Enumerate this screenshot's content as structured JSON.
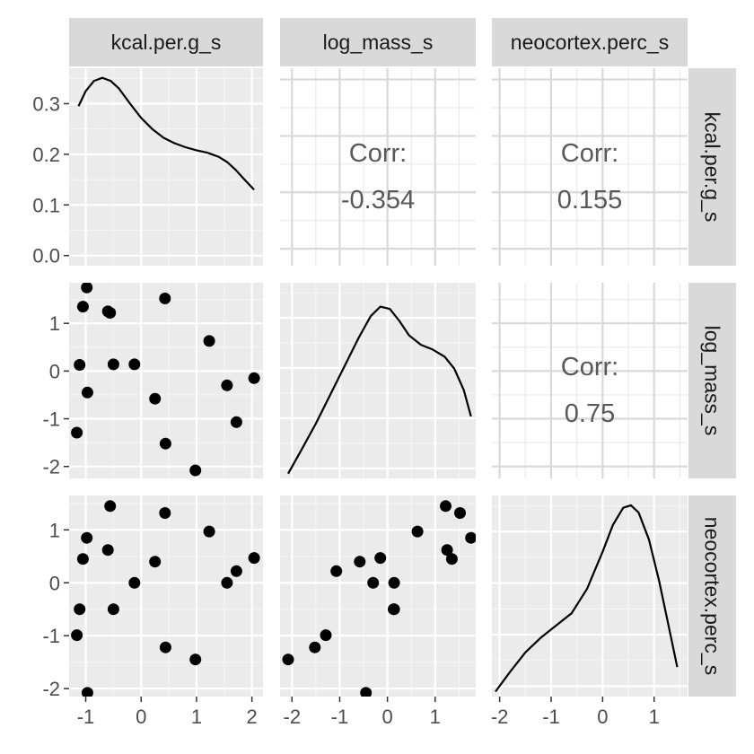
{
  "chart_data": {
    "type": "scatter-matrix",
    "variables": [
      "kcal.per.g_s",
      "log_mass_s",
      "neocortex.perc_s"
    ],
    "axes": {
      "kcal.per.g_s": {
        "range": [
          -1.3,
          2.2
        ],
        "ticks": [
          -1,
          0,
          1,
          2
        ],
        "tick_labels": [
          "-1",
          "0",
          "1",
          "2"
        ]
      },
      "log_mass_s": {
        "range": [
          -2.25,
          1.85
        ],
        "ticks": [
          -2,
          -1,
          0,
          1
        ],
        "tick_labels": [
          "-2",
          "-1",
          "0",
          "1"
        ]
      },
      "neocortex.perc_s": {
        "range": [
          -2.15,
          1.65
        ],
        "ticks": [
          -2,
          -1,
          0,
          1
        ],
        "tick_labels": [
          "-2",
          "-1",
          "0",
          "1"
        ]
      }
    },
    "density_axis": {
      "range": [
        -0.02,
        0.37
      ],
      "ticks": [
        0,
        0.1,
        0.2,
        0.3
      ],
      "tick_labels": [
        "0.0",
        "0.1",
        "0.2",
        "0.3"
      ]
    },
    "correlations": [
      {
        "row": "kcal.per.g_s",
        "col": "log_mass_s",
        "label": "Corr:",
        "value": "-0.354"
      },
      {
        "row": "kcal.per.g_s",
        "col": "neocortex.perc_s",
        "label": "Corr:",
        "value": "0.155"
      },
      {
        "row": "log_mass_s",
        "col": "neocortex.perc_s",
        "label": "Corr:",
        "value": "0.75"
      }
    ],
    "observations": [
      {
        "kcal.per.g_s": -1.16,
        "log_mass_s": -1.29,
        "neocortex.perc_s": -0.99
      },
      {
        "kcal.per.g_s": -1.11,
        "log_mass_s": 0.13,
        "neocortex.perc_s": -0.5
      },
      {
        "kcal.per.g_s": -1.05,
        "log_mass_s": 1.35,
        "neocortex.perc_s": 0.45
      },
      {
        "kcal.per.g_s": -0.98,
        "log_mass_s": 1.75,
        "neocortex.perc_s": 0.85
      },
      {
        "kcal.per.g_s": -0.97,
        "log_mass_s": -0.45,
        "neocortex.perc_s": -2.08
      },
      {
        "kcal.per.g_s": -0.6,
        "log_mass_s": 1.25,
        "neocortex.perc_s": 0.62
      },
      {
        "kcal.per.g_s": -0.56,
        "log_mass_s": 1.22,
        "neocortex.perc_s": 1.45
      },
      {
        "kcal.per.g_s": -0.5,
        "log_mass_s": 0.14,
        "neocortex.perc_s": -0.5
      },
      {
        "kcal.per.g_s": -0.12,
        "log_mass_s": 0.14,
        "neocortex.perc_s": 0.0
      },
      {
        "kcal.per.g_s": 0.25,
        "log_mass_s": -0.58,
        "neocortex.perc_s": 0.4
      },
      {
        "kcal.per.g_s": 0.43,
        "log_mass_s": 1.52,
        "neocortex.perc_s": 1.32
      },
      {
        "kcal.per.g_s": 0.44,
        "log_mass_s": -1.52,
        "neocortex.perc_s": -1.22
      },
      {
        "kcal.per.g_s": 0.98,
        "log_mass_s": -2.08,
        "neocortex.perc_s": -1.45
      },
      {
        "kcal.per.g_s": 1.23,
        "log_mass_s": 0.63,
        "neocortex.perc_s": 0.97
      },
      {
        "kcal.per.g_s": 1.55,
        "log_mass_s": -0.3,
        "neocortex.perc_s": 0.0
      },
      {
        "kcal.per.g_s": 1.72,
        "log_mass_s": -1.07,
        "neocortex.perc_s": 0.22
      },
      {
        "kcal.per.g_s": 2.04,
        "log_mass_s": -0.15,
        "neocortex.perc_s": 0.47
      }
    ],
    "density_curves": {
      "kcal.per.g_s": {
        "x": [
          -1.13,
          -1.0,
          -0.85,
          -0.7,
          -0.55,
          -0.4,
          -0.2,
          0.0,
          0.2,
          0.4,
          0.6,
          0.8,
          1.0,
          1.2,
          1.4,
          1.55,
          1.7,
          1.85,
          2.04
        ],
        "y": [
          0.295,
          0.325,
          0.345,
          0.351,
          0.345,
          0.33,
          0.3,
          0.272,
          0.25,
          0.233,
          0.222,
          0.214,
          0.208,
          0.203,
          0.195,
          0.185,
          0.17,
          0.152,
          0.13
        ]
      },
      "log_mass_s": {
        "x": [
          -2.08,
          -1.8,
          -1.5,
          -1.2,
          -0.9,
          -0.6,
          -0.35,
          -0.15,
          0.05,
          0.25,
          0.45,
          0.7,
          0.95,
          1.2,
          1.4,
          1.6,
          1.75
        ],
        "y": [
          0.0,
          0.1,
          0.21,
          0.33,
          0.45,
          0.57,
          0.66,
          0.7,
          0.69,
          0.64,
          0.58,
          0.54,
          0.52,
          0.49,
          0.44,
          0.35,
          0.24
        ]
      },
      "neocortex.perc_s": {
        "x": [
          -2.08,
          -1.8,
          -1.5,
          -1.2,
          -0.9,
          -0.6,
          -0.3,
          0.0,
          0.2,
          0.4,
          0.55,
          0.7,
          0.9,
          1.1,
          1.3,
          1.45
        ],
        "y": [
          0.0,
          0.08,
          0.16,
          0.22,
          0.27,
          0.32,
          0.42,
          0.57,
          0.68,
          0.75,
          0.76,
          0.73,
          0.62,
          0.45,
          0.25,
          0.1
        ]
      }
    },
    "grid": true,
    "strip_labels": {
      "top": [
        "kcal.per.g_s",
        "log_mass_s",
        "neocortex.perc_s"
      ],
      "right": [
        "kcal.per.g_s",
        "log_mass_s",
        "neocortex.perc_s"
      ]
    }
  }
}
